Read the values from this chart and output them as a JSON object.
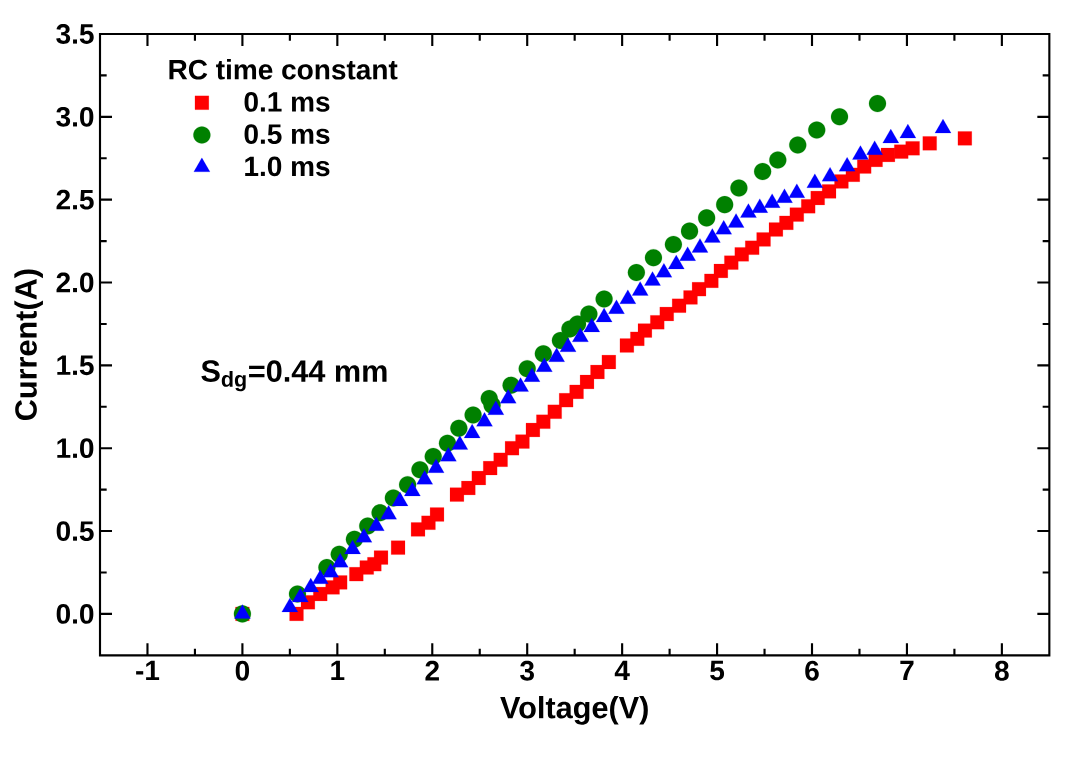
{
  "chart_data": {
    "type": "scatter",
    "xlabel": "Voltage(V)",
    "ylabel": "Current(A)",
    "legend_title": "RC time constant",
    "legend": "top left",
    "xlim": [
      -1.5,
      8.5
    ],
    "ylim": [
      -0.25,
      3.5
    ],
    "xticks": [
      -1,
      0,
      1,
      2,
      3,
      4,
      5,
      6,
      7,
      8
    ],
    "yticks": [
      {
        "value": 0,
        "label": "0.0"
      },
      {
        "value": 0.5,
        "label": "0.5"
      },
      {
        "value": 1,
        "label": "1.0"
      },
      {
        "value": 1.5,
        "label": "1.5"
      },
      {
        "value": 2,
        "label": "2.0"
      },
      {
        "value": 2.5,
        "label": "2.5"
      },
      {
        "value": 3,
        "label": "3.0"
      },
      {
        "value": 3.5,
        "label": "3.5"
      }
    ],
    "annotations": [
      "S$_{dg}$=0.44 mm"
    ],
    "series": [
      {
        "name": "0.1 ms",
        "color": "#ff0000",
        "marker": "square",
        "x": [
          0,
          0.57,
          0.69,
          0.82,
          0.95,
          1.03,
          1.2,
          1.31,
          1.39,
          1.46,
          1.64,
          1.85,
          1.96,
          2.05,
          2.26,
          2.38,
          2.49,
          2.61,
          2.72,
          2.84,
          2.95,
          3.06,
          3.17,
          3.29,
          3.41,
          3.52,
          3.63,
          3.74,
          3.86,
          4.05,
          4.16,
          4.24,
          4.37,
          4.47,
          4.6,
          4.72,
          4.81,
          4.94,
          5.04,
          5.15,
          5.26,
          5.37,
          5.49,
          5.62,
          5.73,
          5.84,
          5.96,
          6.06,
          6.18,
          6.31,
          6.43,
          6.55,
          6.67,
          6.8,
          6.94,
          7.06,
          7.24,
          7.61
        ],
        "values": [
          0,
          0,
          0.07,
          0.12,
          0.16,
          0.19,
          0.24,
          0.28,
          0.3,
          0.34,
          0.4,
          0.51,
          0.55,
          0.6,
          0.72,
          0.76,
          0.82,
          0.88,
          0.93,
          1.0,
          1.04,
          1.11,
          1.16,
          1.22,
          1.29,
          1.34,
          1.4,
          1.46,
          1.52,
          1.62,
          1.66,
          1.71,
          1.76,
          1.81,
          1.86,
          1.91,
          1.96,
          2.01,
          2.07,
          2.12,
          2.17,
          2.21,
          2.26,
          2.32,
          2.36,
          2.41,
          2.46,
          2.51,
          2.55,
          2.61,
          2.65,
          2.7,
          2.74,
          2.77,
          2.79,
          2.81,
          2.84,
          2.87
        ]
      },
      {
        "name": "0.5 ms",
        "color": "#008000",
        "marker": "circle",
        "x": [
          0,
          0.58,
          0.74,
          0.89,
          1.02,
          1.18,
          1.32,
          1.45,
          1.59,
          1.74,
          1.87,
          2.01,
          2.16,
          2.28,
          2.43,
          2.6,
          2.63,
          2.83,
          3.0,
          3.17,
          3.35,
          3.45,
          3.53,
          3.65,
          3.81,
          4.15,
          4.33,
          4.54,
          4.71,
          4.89,
          5.08,
          5.23,
          5.48,
          5.64,
          5.85,
          6.05,
          6.29,
          6.69
        ],
        "values": [
          0,
          0.12,
          null,
          0.28,
          0.36,
          0.45,
          0.53,
          0.61,
          0.7,
          0.78,
          0.87,
          0.95,
          1.03,
          1.12,
          1.2,
          1.3,
          1.26,
          1.38,
          1.48,
          1.57,
          1.65,
          1.72,
          1.75,
          1.81,
          1.9,
          2.06,
          2.15,
          2.23,
          2.31,
          2.39,
          2.47,
          2.57,
          2.67,
          2.74,
          2.83,
          2.92,
          3.0,
          3.08
        ]
      },
      {
        "name": "1.0 ms",
        "color": "#0000ff",
        "marker": "triangle",
        "x": [
          0,
          0.5,
          0.61,
          0.72,
          0.82,
          0.93,
          1.03,
          1.16,
          1.28,
          1.41,
          1.54,
          1.66,
          1.79,
          1.92,
          2.04,
          2.17,
          2.29,
          2.42,
          2.55,
          2.67,
          2.8,
          2.93,
          3.05,
          3.18,
          3.31,
          3.43,
          3.56,
          3.68,
          3.81,
          3.94,
          4.06,
          4.19,
          4.32,
          4.44,
          4.57,
          4.69,
          4.82,
          4.95,
          5.07,
          5.2,
          5.33,
          5.45,
          5.58,
          5.71,
          5.84,
          6.03,
          6.19,
          6.37,
          6.51,
          6.66,
          6.83,
          7.01,
          7.38
        ],
        "values": [
          0,
          0.04,
          0.1,
          0.16,
          0.21,
          0.25,
          0.31,
          0.39,
          0.46,
          0.53,
          0.6,
          0.68,
          0.74,
          0.81,
          0.88,
          0.95,
          1.02,
          1.09,
          1.16,
          1.23,
          1.3,
          1.37,
          1.43,
          1.49,
          1.55,
          1.61,
          1.67,
          1.73,
          1.79,
          1.84,
          1.9,
          1.95,
          2.01,
          2.06,
          2.11,
          2.16,
          2.21,
          2.27,
          2.32,
          2.36,
          2.42,
          2.45,
          2.48,
          2.51,
          2.54,
          2.6,
          2.64,
          2.7,
          2.77,
          2.8,
          2.87,
          2.9,
          2.93
        ]
      }
    ]
  }
}
